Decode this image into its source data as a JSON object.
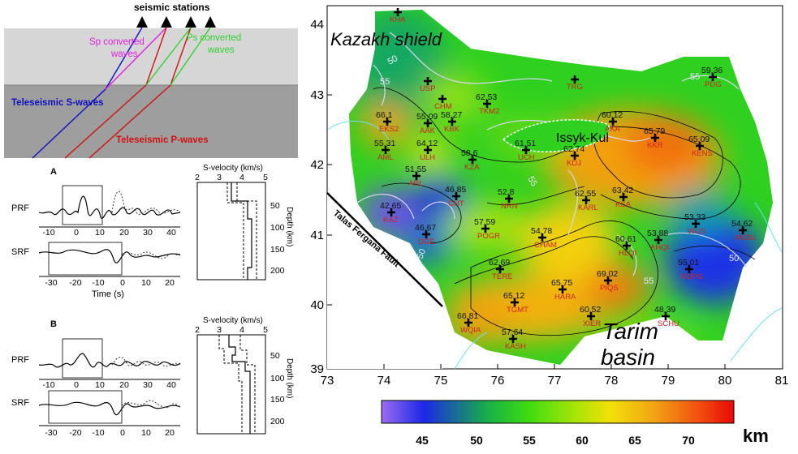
{
  "schematic": {
    "title": "seismic stations",
    "sp_label_1": "Sp converted",
    "sp_label_2": "waves",
    "ps_label_1": "Ps converted",
    "ps_label_2": "waves",
    "s_waves": "Teleseismic S-waves",
    "p_waves": "Teleseismic P-waves",
    "colors": {
      "sp": "#e020e0",
      "ps": "#30d030",
      "s": "#1010c0",
      "p": "#d01010"
    }
  },
  "panel_a": {
    "label": "A",
    "prf": "PRF",
    "srf": "SRF",
    "prf_ticks": [
      "-10",
      "0",
      "10",
      "20",
      "30",
      "40"
    ],
    "srf_ticks": [
      "-30",
      "-20",
      "-10",
      "0",
      "10",
      "20"
    ],
    "time_label": "Time (s)",
    "vel_title": "S-velocity (km/s)",
    "vel_ticks": [
      "2",
      "3",
      "4",
      "5"
    ],
    "depth_ticks": [
      "50",
      "100",
      "150",
      "200"
    ],
    "depth_label": "Depth (km)"
  },
  "panel_b": {
    "label": "B",
    "prf": "PRF",
    "srf": "SRF",
    "prf_ticks": [
      "-10",
      "0",
      "10",
      "20",
      "30",
      "40"
    ],
    "srf_ticks": [
      "-30",
      "-20",
      "-10",
      "0",
      "10",
      "20"
    ],
    "vel_title": "S-velocity (km/s)",
    "vel_ticks": [
      "2",
      "3",
      "4",
      "5"
    ],
    "depth_ticks": [
      "50",
      "100",
      "150",
      "200"
    ],
    "depth_label": "Depth (km)"
  },
  "map": {
    "kazakh": "Kazakh shield",
    "tarim_1": "Tarim",
    "tarim_2": "basin",
    "issyk": "Issyk-Kul",
    "fault": "Talas Fergana Fault",
    "lon_ticks": [
      "73",
      "74",
      "75",
      "76",
      "77",
      "78",
      "79",
      "80",
      "81"
    ],
    "lat_ticks": [
      "44",
      "43",
      "42",
      "41",
      "40",
      "39"
    ],
    "contour_labels": [
      "50",
      "55",
      "55",
      "55",
      "50",
      "50",
      "55",
      "55"
    ],
    "stations": [
      {
        "code": "KHA",
        "value": ""
      },
      {
        "code": "USP",
        "value": ""
      },
      {
        "code": "CHM",
        "value": ""
      },
      {
        "code": "TKM2",
        "value": "62.53"
      },
      {
        "code": "TRG",
        "value": ""
      },
      {
        "code": "PDG",
        "value": "59.36"
      },
      {
        "code": "EKS2",
        "value": "66.1"
      },
      {
        "code": "AAK",
        "value": "55.09"
      },
      {
        "code": "KBK",
        "value": "58.27"
      },
      {
        "code": "AML",
        "value": "55.31"
      },
      {
        "code": "ULH",
        "value": "64.12"
      },
      {
        "code": "KZA",
        "value": "58.6"
      },
      {
        "code": "UCH",
        "value": "61.51"
      },
      {
        "code": "KDJ",
        "value": "62.74"
      },
      {
        "code": "AKA",
        "value": "60.12"
      },
      {
        "code": "KKR",
        "value": "65.79"
      },
      {
        "code": "KENS",
        "value": "65.09"
      },
      {
        "code": "ARL",
        "value": "51.55"
      },
      {
        "code": "CHT",
        "value": "46.85"
      },
      {
        "code": "NRN",
        "value": "52.8"
      },
      {
        "code": "KARL",
        "value": "62.55"
      },
      {
        "code": "KSA",
        "value": "63.42"
      },
      {
        "code": "KAZ",
        "value": "42.65"
      },
      {
        "code": "DGE",
        "value": "46.67"
      },
      {
        "code": "POGR",
        "value": "57.59"
      },
      {
        "code": "CHAM",
        "value": "54.78"
      },
      {
        "code": "HLQI",
        "value": "60.61"
      },
      {
        "code": "WUS",
        "value": "53.33"
      },
      {
        "code": "AKSU",
        "value": "54.62"
      },
      {
        "code": "AHQI",
        "value": "53.88"
      },
      {
        "code": "TERE",
        "value": "62.69"
      },
      {
        "code": "PIQS",
        "value": "69.02"
      },
      {
        "code": "HARA",
        "value": "65.75"
      },
      {
        "code": "KOPG",
        "value": "55.01"
      },
      {
        "code": "TGMT",
        "value": "65.12"
      },
      {
        "code": "WQIA",
        "value": "66.81"
      },
      {
        "code": "XIER",
        "value": "60.52"
      },
      {
        "code": "SCHU",
        "value": "48.39"
      },
      {
        "code": "KASH",
        "value": "57.64"
      }
    ]
  },
  "colorbar": {
    "ticks": [
      "45",
      "50",
      "55",
      "60",
      "65",
      "70"
    ],
    "unit": "km",
    "stops": [
      "#9b6cf2",
      "#1a28e6",
      "#18b048",
      "#3fdc10",
      "#a8e408",
      "#f2e008",
      "#f2a014",
      "#f25010",
      "#e80808"
    ]
  }
}
